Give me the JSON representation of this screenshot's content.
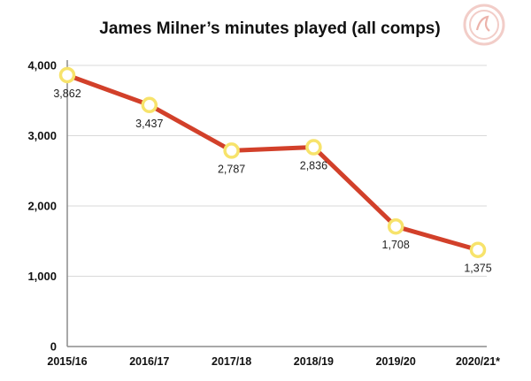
{
  "chart_data": {
    "type": "line",
    "title": "James Milner’s minutes played (all comps)",
    "xlabel": "",
    "ylabel": "",
    "categories": [
      "2015/16",
      "2016/17",
      "2017/18",
      "2018/19",
      "2019/20",
      "2020/21*"
    ],
    "series": [
      {
        "values": [
          3862,
          3437,
          2787,
          2836,
          1708,
          1375
        ],
        "data_labels": [
          "3,862",
          "3,437",
          "2,787",
          "2,836",
          "1,708",
          "1,375"
        ]
      }
    ],
    "ylim": [
      0,
      4000
    ],
    "yticks": [
      0,
      1000,
      2000,
      3000,
      4000
    ],
    "ytick_labels": [
      "0",
      "1,000",
      "2,000",
      "3,000",
      "4,000"
    ],
    "grid": "horizontal",
    "legend": "none",
    "line_color": "#d2402a",
    "marker_fill": "#ffffff",
    "marker_stroke": "#f7e36b",
    "logo_color": "#e9a8a0"
  }
}
